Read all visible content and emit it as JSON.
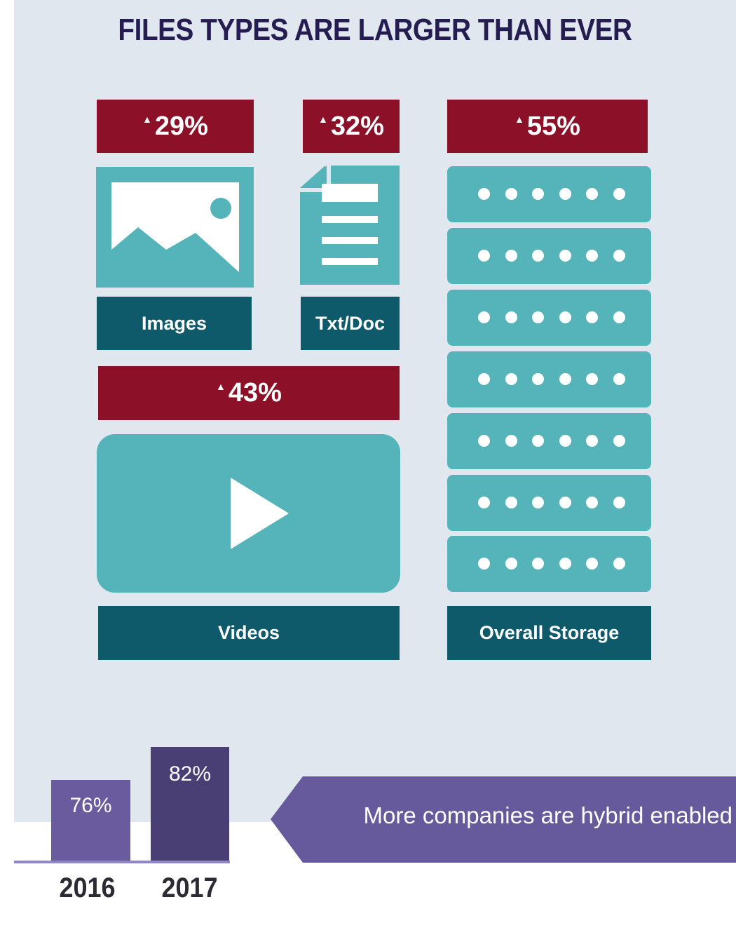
{
  "title": "FILES TYPES ARE LARGER THAN EVER",
  "colors": {
    "increase": "#8c1028",
    "label": "#0f5a6a",
    "icon": "#55b4b9",
    "panel": "#e0e7ef",
    "title": "#251c52",
    "bar2016": "#6a5a9e",
    "bar2017": "#4a3f75",
    "banner": "#665a9c"
  },
  "increase_symbol": "▲",
  "file_types": [
    {
      "label": "Images",
      "increase": "29%",
      "icon": "image-icon"
    },
    {
      "label": "Txt/Doc",
      "increase": "32%",
      "icon": "document-icon"
    },
    {
      "label": "Videos",
      "increase": "43%",
      "icon": "play-video-icon"
    },
    {
      "label": "Overall Storage",
      "increase": "55%",
      "icon": "server-stack-icon"
    }
  ],
  "hybrid": {
    "bars": [
      {
        "year": "2016",
        "value": "76%"
      },
      {
        "year": "2017",
        "value": "82%"
      }
    ],
    "banner_text": "More companies are hybrid enabled"
  }
}
